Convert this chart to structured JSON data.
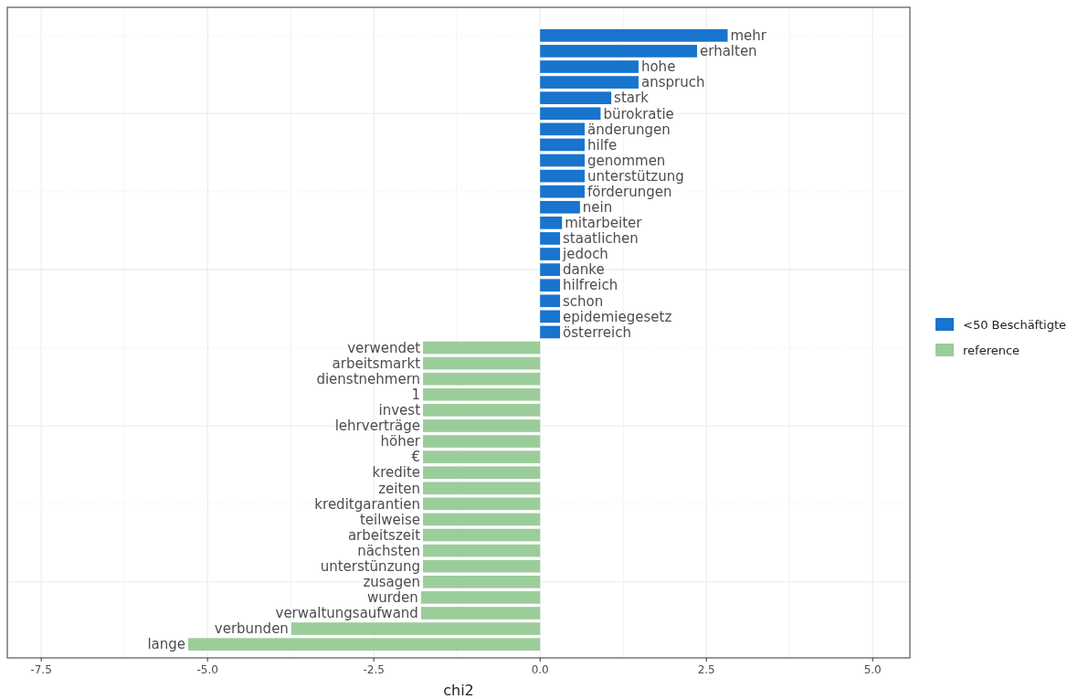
{
  "chart_data": {
    "type": "bar",
    "orientation": "horizontal",
    "xlabel": "chi2",
    "categories": [
      "mehr",
      "erhalten",
      "hohe",
      "anspruch",
      "stark",
      "bürokratie",
      "änderungen",
      "hilfe",
      "genommen",
      "unterstützung",
      "förderungen",
      "nein",
      "mitarbeiter",
      "staatlichen",
      "jedoch",
      "danke",
      "hilfreich",
      "schon",
      "epidemiegesetz",
      "österreich",
      "verwendet",
      "arbeitsmarkt",
      "dienstnehmern",
      "1",
      "invest",
      "lehrverträge",
      "höher",
      "€",
      "kredite",
      "zeiten",
      "kreditgarantien",
      "teilweise",
      "arbeitszeit",
      "nächsten",
      "unterstünzung",
      "zusagen",
      "wurden",
      "verwaltungsaufwand",
      "verbunden",
      "lange"
    ],
    "series": [
      {
        "name": "<50 Beschäftigte",
        "color": "#1874cd",
        "values": [
          2.82,
          2.36,
          1.48,
          1.48,
          1.07,
          0.91,
          0.67,
          0.67,
          0.67,
          0.67,
          0.67,
          0.6,
          0.33,
          0.3,
          0.3,
          0.3,
          0.3,
          0.3,
          0.3,
          0.3,
          null,
          null,
          null,
          null,
          null,
          null,
          null,
          null,
          null,
          null,
          null,
          null,
          null,
          null,
          null,
          null,
          null,
          null,
          null,
          null
        ]
      },
      {
        "name": "reference",
        "color": "#9bcd9b",
        "values": [
          null,
          null,
          null,
          null,
          null,
          null,
          null,
          null,
          null,
          null,
          null,
          null,
          null,
          null,
          null,
          null,
          null,
          null,
          null,
          null,
          -1.76,
          -1.76,
          -1.76,
          -1.76,
          -1.76,
          -1.76,
          -1.76,
          -1.76,
          -1.76,
          -1.76,
          -1.76,
          -1.76,
          -1.76,
          -1.76,
          -1.76,
          -1.76,
          -1.79,
          -1.79,
          -3.74,
          -5.29
        ]
      }
    ],
    "xlim": [
      -8.01,
      5.56
    ],
    "xticks": [
      {
        "value": -7.5,
        "label": "-7.5"
      },
      {
        "value": -5,
        "label": "-5.0"
      },
      {
        "value": -2.5,
        "label": "-2.5"
      },
      {
        "value": 0,
        "label": "0.0"
      },
      {
        "value": 2.5,
        "label": "2.5"
      },
      {
        "value": 5,
        "label": "5.0"
      }
    ],
    "grid": true,
    "legend": "right",
    "tick_labels": "x"
  }
}
